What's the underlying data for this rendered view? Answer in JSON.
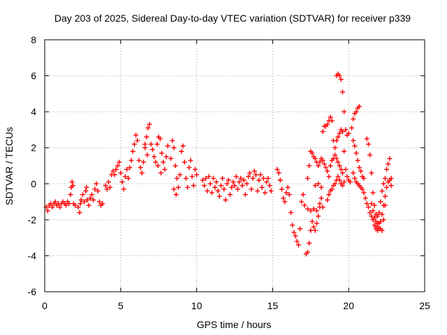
{
  "chart_data": {
    "type": "scatter",
    "title": "Day 203 of 2025, Sidereal Day-to-day VTEC variation (SDTVAR) for receiver p339",
    "xlabel": "GPS time / hours",
    "ylabel": "SDTVAR / TECUs",
    "xlim": [
      0,
      25
    ],
    "ylim": [
      -6,
      8
    ],
    "xticks": [
      "0",
      "5",
      "10",
      "15",
      "20",
      "25"
    ],
    "yticks": [
      "-6",
      "-4",
      "-2",
      "0",
      "2",
      "4",
      "6",
      "8"
    ],
    "grid": true,
    "marker": "+",
    "color": "#ff0000",
    "series": [
      {
        "name": "SDTVAR",
        "points": [
          [
            0.1,
            -1.3
          ],
          [
            0.2,
            -1.5
          ],
          [
            0.3,
            -1.2
          ],
          [
            0.4,
            -1.1
          ],
          [
            0.5,
            -1.3
          ],
          [
            0.6,
            -1.1
          ],
          [
            0.7,
            -1.0
          ],
          [
            0.8,
            -1.2
          ],
          [
            0.9,
            -1.1
          ],
          [
            1.0,
            -1.3
          ],
          [
            1.1,
            -1.1
          ],
          [
            1.2,
            -1.0
          ],
          [
            1.3,
            -1.1
          ],
          [
            1.4,
            -1.2
          ],
          [
            1.5,
            -1.0
          ],
          [
            1.6,
            -1.1
          ],
          [
            1.7,
            -0.6
          ],
          [
            1.75,
            -0.2
          ],
          [
            1.8,
            0.1
          ],
          [
            1.85,
            -0.1
          ],
          [
            1.9,
            -1.1
          ],
          [
            2.0,
            -1.2
          ],
          [
            2.2,
            -1.3
          ],
          [
            2.3,
            -1.6
          ],
          [
            2.35,
            -1.1
          ],
          [
            2.4,
            -0.9
          ],
          [
            2.5,
            -0.6
          ],
          [
            2.6,
            -1.0
          ],
          [
            2.7,
            -0.4
          ],
          [
            2.75,
            -0.2
          ],
          [
            2.8,
            -0.9
          ],
          [
            2.9,
            -1.2
          ],
          [
            3.0,
            -0.8
          ],
          [
            3.1,
            -0.6
          ],
          [
            3.2,
            -0.9
          ],
          [
            3.3,
            -0.3
          ],
          [
            3.4,
            0.0
          ],
          [
            3.5,
            -0.4
          ],
          [
            3.6,
            -1.0
          ],
          [
            3.7,
            -1.2
          ],
          [
            3.8,
            -1.1
          ],
          [
            4.0,
            -0.1
          ],
          [
            4.1,
            -0.3
          ],
          [
            4.2,
            0.1
          ],
          [
            4.3,
            -0.2
          ],
          [
            4.4,
            0.5
          ],
          [
            4.5,
            0.7
          ],
          [
            4.6,
            0.5
          ],
          [
            4.7,
            0.8
          ],
          [
            4.8,
            1.0
          ],
          [
            4.9,
            1.2
          ],
          [
            5.0,
            0.6
          ],
          [
            5.1,
            0.1
          ],
          [
            5.2,
            -0.3
          ],
          [
            5.3,
            0.4
          ],
          [
            5.4,
            0.8
          ],
          [
            5.5,
            0.3
          ],
          [
            5.6,
            0.9
          ],
          [
            5.7,
            1.3
          ],
          [
            5.8,
            1.8
          ],
          [
            5.9,
            2.2
          ],
          [
            6.0,
            2.7
          ],
          [
            6.1,
            2.4
          ],
          [
            6.2,
            1.3
          ],
          [
            6.3,
            0.9
          ],
          [
            6.4,
            0.6
          ],
          [
            6.5,
            1.2
          ],
          [
            6.6,
            2.0
          ],
          [
            6.7,
            2.6
          ],
          [
            6.8,
            3.1
          ],
          [
            6.9,
            3.3
          ],
          [
            6.6,
            2.2
          ],
          [
            6.75,
            1.6
          ],
          [
            7.0,
            2.2
          ],
          [
            7.1,
            1.9
          ],
          [
            7.2,
            1.5
          ],
          [
            7.3,
            1.2
          ],
          [
            7.4,
            2.2
          ],
          [
            7.5,
            2.6
          ],
          [
            7.6,
            2.5
          ],
          [
            7.7,
            1.7
          ],
          [
            7.8,
            1.2
          ],
          [
            7.9,
            0.8
          ],
          [
            8.0,
            1.5
          ],
          [
            8.1,
            2.1
          ],
          [
            7.45,
            1.0
          ],
          [
            7.65,
            0.6
          ],
          [
            8.3,
            1.4
          ],
          [
            8.4,
            2.4
          ],
          [
            8.5,
            2.0
          ],
          [
            8.6,
            1.0
          ],
          [
            8.7,
            0.3
          ],
          [
            8.8,
            -0.2
          ],
          [
            8.9,
            0.5
          ],
          [
            9.0,
            1.8
          ],
          [
            9.1,
            2.1
          ],
          [
            9.2,
            1.2
          ],
          [
            9.3,
            0.3
          ],
          [
            9.4,
            -0.2
          ],
          [
            9.5,
            0.9
          ],
          [
            9.6,
            1.3
          ],
          [
            9.7,
            0.4
          ],
          [
            9.8,
            -0.1
          ],
          [
            9.9,
            0.8
          ],
          [
            10.0,
            0.5
          ],
          [
            8.5,
            -0.3
          ],
          [
            8.65,
            -0.6
          ],
          [
            10.4,
            0.2
          ],
          [
            10.5,
            -0.1
          ],
          [
            10.6,
            0.3
          ],
          [
            10.7,
            -0.4
          ],
          [
            10.8,
            0.4
          ],
          [
            10.9,
            0.0
          ],
          [
            11.0,
            -0.5
          ],
          [
            11.1,
            0.3
          ],
          [
            11.2,
            -0.2
          ],
          [
            11.3,
            0.1
          ],
          [
            11.4,
            -0.4
          ],
          [
            11.5,
            -0.7
          ],
          [
            11.6,
            -0.1
          ],
          [
            11.7,
            0.3
          ],
          [
            11.8,
            -0.3
          ],
          [
            11.9,
            -0.9
          ],
          [
            12.0,
            0.0
          ],
          [
            12.1,
            0.2
          ],
          [
            12.2,
            -0.6
          ],
          [
            12.3,
            -0.2
          ],
          [
            12.4,
            0.1
          ],
          [
            12.5,
            -0.1
          ],
          [
            12.6,
            0.4
          ],
          [
            12.7,
            -0.3
          ],
          [
            12.8,
            0.1
          ],
          [
            12.9,
            0.3
          ],
          [
            13.0,
            -0.1
          ],
          [
            13.1,
            0.2
          ],
          [
            13.2,
            -0.6
          ],
          [
            13.3,
            0.0
          ],
          [
            13.4,
            0.4
          ],
          [
            13.5,
            0.6
          ],
          [
            13.6,
            -0.3
          ],
          [
            13.7,
            0.3
          ],
          [
            13.8,
            0.7
          ],
          [
            13.9,
            0.5
          ],
          [
            14.0,
            -0.4
          ],
          [
            14.1,
            0.2
          ],
          [
            14.2,
            0.5
          ],
          [
            14.3,
            -0.2
          ],
          [
            14.4,
            0.3
          ],
          [
            14.5,
            -0.5
          ],
          [
            14.6,
            0.1
          ],
          [
            14.7,
            0.3
          ],
          [
            14.8,
            -0.1
          ],
          [
            14.9,
            -0.4
          ],
          [
            15.3,
            0.8
          ],
          [
            15.4,
            0.6
          ],
          [
            15.5,
            0.2
          ],
          [
            15.6,
            -0.3
          ],
          [
            15.7,
            -0.8
          ],
          [
            15.8,
            -1.0
          ],
          [
            15.9,
            -0.5
          ],
          [
            16.0,
            -0.2
          ],
          [
            16.1,
            -0.6
          ],
          [
            16.2,
            -1.6
          ],
          [
            16.3,
            -2.3
          ],
          [
            16.4,
            -2.7
          ],
          [
            16.5,
            -2.9
          ],
          [
            16.6,
            -3.2
          ],
          [
            16.7,
            -3.4
          ],
          [
            16.8,
            -2.5
          ],
          [
            16.9,
            -1.0
          ],
          [
            17.0,
            -0.6
          ],
          [
            17.1,
            -1.2
          ],
          [
            17.2,
            -3.9
          ],
          [
            17.3,
            -3.8
          ],
          [
            17.4,
            -3.3
          ],
          [
            17.5,
            -2.6
          ],
          [
            17.6,
            -2.1
          ],
          [
            17.7,
            -2.4
          ],
          [
            17.8,
            -2.6
          ],
          [
            17.9,
            -2.2
          ],
          [
            18.0,
            -1.8
          ],
          [
            18.1,
            -1.1
          ],
          [
            18.2,
            -0.8
          ],
          [
            17.3,
            -1.4
          ],
          [
            17.5,
            -1.5
          ],
          [
            17.7,
            -1.4
          ],
          [
            17.9,
            -1.5
          ],
          [
            18.1,
            -1.3
          ],
          [
            18.3,
            -1.3
          ],
          [
            17.3,
            0.3
          ],
          [
            17.4,
            1.0
          ],
          [
            17.5,
            1.8
          ],
          [
            17.6,
            1.7
          ],
          [
            17.7,
            1.5
          ],
          [
            17.8,
            1.4
          ],
          [
            17.9,
            1.2
          ],
          [
            18.0,
            1.0
          ],
          [
            18.1,
            1.2
          ],
          [
            18.2,
            1.4
          ],
          [
            18.3,
            1.3
          ],
          [
            18.4,
            1.1
          ],
          [
            18.5,
            0.9
          ],
          [
            18.6,
            0.7
          ],
          [
            18.7,
            0.4
          ],
          [
            18.8,
            1.0
          ],
          [
            18.9,
            1.3
          ],
          [
            19.0,
            1.4
          ],
          [
            19.1,
            1.6
          ],
          [
            19.2,
            1.4
          ],
          [
            19.3,
            1.2
          ],
          [
            19.4,
            1.0
          ],
          [
            19.5,
            0.8
          ],
          [
            19.6,
            0.6
          ],
          [
            18.6,
            -0.9
          ],
          [
            18.7,
            -0.6
          ],
          [
            18.8,
            -0.4
          ],
          [
            18.9,
            -0.3
          ],
          [
            19.0,
            -0.1
          ],
          [
            19.1,
            0.0
          ],
          [
            19.2,
            0.2
          ],
          [
            19.3,
            0.4
          ],
          [
            19.4,
            0.2
          ],
          [
            19.5,
            0.0
          ],
          [
            19.6,
            -0.1
          ],
          [
            19.7,
            0.1
          ],
          [
            17.8,
            -0.1
          ],
          [
            18.0,
            0.0
          ],
          [
            18.2,
            -0.2
          ],
          [
            18.3,
            2.9
          ],
          [
            18.4,
            3.2
          ],
          [
            18.5,
            3.2
          ],
          [
            18.6,
            3.3
          ],
          [
            18.7,
            3.5
          ],
          [
            18.8,
            3.7
          ],
          [
            18.9,
            3.5
          ],
          [
            19.0,
            2.4
          ],
          [
            19.1,
            2.0
          ],
          [
            19.2,
            6.0
          ],
          [
            19.3,
            6.1
          ],
          [
            19.4,
            6.0
          ],
          [
            19.5,
            5.8
          ],
          [
            19.6,
            5.1
          ],
          [
            19.7,
            4.0
          ],
          [
            19.8,
            3.0
          ],
          [
            19.9,
            2.7
          ],
          [
            20.0,
            2.8
          ],
          [
            19.2,
            2.4
          ],
          [
            19.3,
            2.6
          ],
          [
            19.4,
            2.8
          ],
          [
            19.5,
            3.0
          ],
          [
            19.6,
            2.9
          ],
          [
            19.7,
            1.8
          ],
          [
            19.8,
            0.8
          ],
          [
            19.9,
            0.4
          ],
          [
            20.0,
            0.2
          ],
          [
            20.1,
            0.1
          ],
          [
            20.2,
            3.1
          ],
          [
            20.3,
            3.6
          ],
          [
            20.4,
            3.9
          ],
          [
            20.5,
            4.0
          ],
          [
            20.6,
            4.2
          ],
          [
            20.7,
            4.3
          ],
          [
            20.3,
            2.4
          ],
          [
            20.4,
            2.1
          ],
          [
            20.5,
            1.7
          ],
          [
            20.6,
            1.3
          ],
          [
            20.7,
            0.9
          ],
          [
            20.8,
            0.7
          ],
          [
            20.9,
            0.4
          ],
          [
            21.0,
            0.3
          ],
          [
            20.3,
            0.6
          ],
          [
            20.4,
            0.3
          ],
          [
            20.5,
            0.1
          ],
          [
            20.6,
            0.0
          ],
          [
            20.7,
            -0.1
          ],
          [
            20.8,
            -0.2
          ],
          [
            20.9,
            -0.3
          ],
          [
            21.0,
            -0.5
          ],
          [
            21.1,
            -0.8
          ],
          [
            21.2,
            -1.1
          ],
          [
            21.3,
            -1.3
          ],
          [
            21.4,
            -1.6
          ],
          [
            21.5,
            -1.8
          ],
          [
            21.6,
            -2.0
          ],
          [
            21.7,
            -2.3
          ],
          [
            21.8,
            -2.5
          ],
          [
            21.9,
            -2.4
          ],
          [
            21.2,
            2.5
          ],
          [
            21.3,
            2.2
          ],
          [
            21.4,
            1.6
          ],
          [
            21.5,
            0.6
          ],
          [
            21.6,
            -0.5
          ],
          [
            21.7,
            -1.2
          ],
          [
            21.8,
            -1.7
          ],
          [
            21.9,
            -1.8
          ],
          [
            22.0,
            -2.2
          ],
          [
            22.1,
            -2.5
          ],
          [
            22.2,
            -2.6
          ],
          [
            22.3,
            -2.0
          ],
          [
            22.4,
            -1.2
          ],
          [
            21.5,
            -1.1
          ],
          [
            21.6,
            -1.5
          ],
          [
            21.7,
            -1.9
          ],
          [
            21.8,
            -2.1
          ],
          [
            21.9,
            -2.2
          ],
          [
            22.0,
            -1.6
          ],
          [
            22.1,
            -1.0
          ],
          [
            22.2,
            -0.4
          ],
          [
            22.3,
            0.0
          ],
          [
            22.4,
            0.3
          ],
          [
            22.5,
            0.8
          ],
          [
            22.6,
            1.1
          ],
          [
            22.7,
            1.4
          ],
          [
            21.8,
            -2.4
          ],
          [
            21.9,
            -2.6
          ],
          [
            22.0,
            -2.5
          ],
          [
            22.1,
            -2.1
          ],
          [
            22.2,
            -1.7
          ],
          [
            22.3,
            -1.2
          ],
          [
            22.4,
            -0.7
          ],
          [
            22.5,
            -0.2
          ],
          [
            22.6,
            0.1
          ],
          [
            22.7,
            0.2
          ],
          [
            22.8,
            -0.1
          ],
          [
            22.8,
            0.3
          ]
        ]
      }
    ]
  }
}
